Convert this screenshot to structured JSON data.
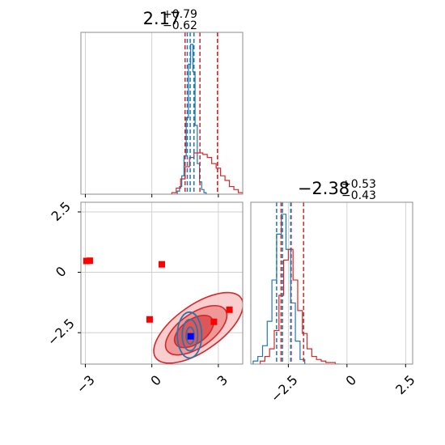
{
  "chart_data": [
    {
      "type": "histogram",
      "panel": "top-left",
      "title": {
        "value": "2.17",
        "plus": "+0.79",
        "minus": "−0.62"
      },
      "xlim": [
        -3.2,
        4.1
      ],
      "xticks": [
        -3,
        0,
        3
      ],
      "grid": true,
      "series": [
        {
          "color": "#1f77b4",
          "style": "step",
          "bins": [
            1.2,
            1.3,
            1.4,
            1.5,
            1.6,
            1.7,
            1.8,
            1.9,
            2.0,
            2.1,
            2.2,
            2.3,
            2.4
          ],
          "values": [
            2,
            5,
            12,
            25,
            50,
            85,
            98,
            80,
            45,
            20,
            8,
            3,
            1
          ]
        },
        {
          "color": "#d62728",
          "style": "step",
          "bins": [
            1.0,
            1.2,
            1.4,
            1.6,
            1.8,
            2.0,
            2.2,
            2.4,
            2.6,
            2.8,
            3.0,
            3.2,
            3.4,
            3.6,
            3.8,
            4.0
          ],
          "values": [
            1,
            4,
            10,
            18,
            24,
            27,
            27,
            26,
            24,
            20,
            17,
            12,
            9,
            5,
            3,
            1
          ]
        }
      ],
      "quantile_lines": [
        {
          "color": "#d62728",
          "x": [
            1.5,
            2.17,
            2.96
          ]
        },
        {
          "color": "#1f77b4",
          "x": [
            1.6,
            1.73,
            1.9
          ]
        }
      ]
    },
    {
      "type": "histogram",
      "panel": "bottom-right",
      "title": {
        "value": "−2.38",
        "plus": "+0.53",
        "minus": "−0.43"
      },
      "xlim": [
        -4.1,
        2.8
      ],
      "xticks": [
        -2.5,
        0.0,
        2.5
      ],
      "grid": true,
      "series": [
        {
          "color": "#1f77b4",
          "style": "step",
          "bins": [
            -3.9,
            -3.7,
            -3.5,
            -3.3,
            -3.1,
            -2.9,
            -2.7,
            -2.5,
            -2.3,
            -2.1,
            -1.9
          ],
          "values": [
            2,
            5,
            12,
            28,
            55,
            85,
            98,
            75,
            40,
            15,
            3
          ]
        },
        {
          "color": "#d62728",
          "style": "step",
          "bins": [
            -3.6,
            -3.4,
            -3.2,
            -3.0,
            -2.8,
            -2.6,
            -2.4,
            -2.2,
            -2.0,
            -1.8,
            -1.6,
            -1.4,
            -1.2,
            -1.0,
            -0.8,
            -0.6,
            -0.4
          ],
          "values": [
            2,
            5,
            10,
            22,
            45,
            68,
            75,
            55,
            35,
            20,
            10,
            5,
            3,
            2,
            1,
            1,
            0
          ]
        }
      ],
      "quantile_lines": [
        {
          "color": "#d62728",
          "x": [
            -2.81,
            -2.38,
            -1.85
          ]
        },
        {
          "color": "#1f77b4",
          "x": [
            -3.0,
            -2.75,
            -2.4
          ]
        }
      ]
    },
    {
      "type": "scatter",
      "panel": "bottom-left",
      "xlim": [
        -3.2,
        4.1
      ],
      "ylim": [
        -3.8,
        2.9
      ],
      "xticks": [
        -3,
        0,
        3
      ],
      "yticks": [
        -2.5,
        0.0,
        2.5
      ],
      "grid": true,
      "red_contours": [
        {
          "level": 1,
          "cx": 2.1,
          "cy": -2.3,
          "rx": 2.35,
          "ry": 0.95,
          "angle": -35,
          "fill": "#f7c6c6"
        },
        {
          "level": 2,
          "cx": 2.0,
          "cy": -2.4,
          "rx": 1.6,
          "ry": 0.7,
          "angle": -35,
          "fill": "#ec8e8e"
        },
        {
          "level": 3,
          "cx": 1.9,
          "cy": -2.45,
          "rx": 1.0,
          "ry": 0.5,
          "angle": -35,
          "fill": "#dc4a4a"
        }
      ],
      "blue_contours": [
        {
          "level": 1,
          "cx": 1.7,
          "cy": -2.6,
          "rx": 0.55,
          "ry": 0.95
        },
        {
          "level": 2,
          "cx": 1.72,
          "cy": -2.6,
          "rx": 0.35,
          "ry": 0.65
        },
        {
          "level": 3,
          "cx": 1.73,
          "cy": -2.62,
          "rx": 0.18,
          "ry": 0.35
        }
      ],
      "red_points": [
        {
          "x": -2.95,
          "y": 0.47
        },
        {
          "x": -2.8,
          "y": 0.48
        },
        {
          "x": 0.45,
          "y": 0.33
        },
        {
          "x": -0.1,
          "y": -1.95
        },
        {
          "x": 2.8,
          "y": -2.05
        },
        {
          "x": 3.5,
          "y": -1.55
        }
      ],
      "blue_points": [
        {
          "x": 1.75,
          "y": -2.65
        }
      ],
      "colors": {
        "red": "#d62728",
        "blue": "#1f77b4",
        "red_marker": "#ff0000",
        "blue_marker": "#0000ff"
      }
    }
  ]
}
